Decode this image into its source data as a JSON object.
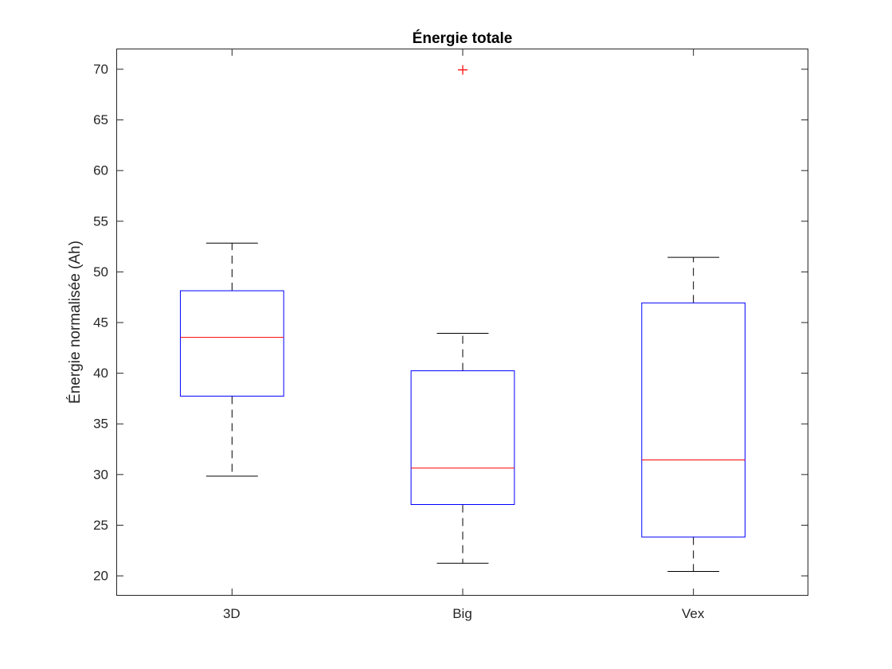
{
  "chart_data": {
    "type": "box",
    "title": "Énergie totale",
    "xlabel": "",
    "ylabel": "Énergie normalisée (Ah)",
    "categories": [
      "3D",
      "Big",
      "Vex"
    ],
    "ylim": [
      18,
      72
    ],
    "yticks": [
      20,
      25,
      30,
      35,
      40,
      45,
      50,
      55,
      60,
      65,
      70
    ],
    "grid": false,
    "boxes": [
      {
        "category": "3D",
        "whisker_low": 29.8,
        "q1": 37.7,
        "median": 43.5,
        "q3": 48.1,
        "whisker_high": 52.8,
        "outliers": []
      },
      {
        "category": "Big",
        "whisker_low": 21.2,
        "q1": 27.0,
        "median": 30.6,
        "q3": 40.2,
        "whisker_high": 43.9,
        "outliers": [
          69.9
        ]
      },
      {
        "category": "Vex",
        "whisker_low": 20.4,
        "q1": 23.8,
        "median": 31.4,
        "q3": 46.9,
        "whisker_high": 51.4,
        "outliers": []
      }
    ],
    "colors": {
      "box": "#0000ff",
      "median": "#ff0000",
      "whisker": "#000000",
      "outlier": "#ff0000",
      "axis": "#262626"
    }
  }
}
